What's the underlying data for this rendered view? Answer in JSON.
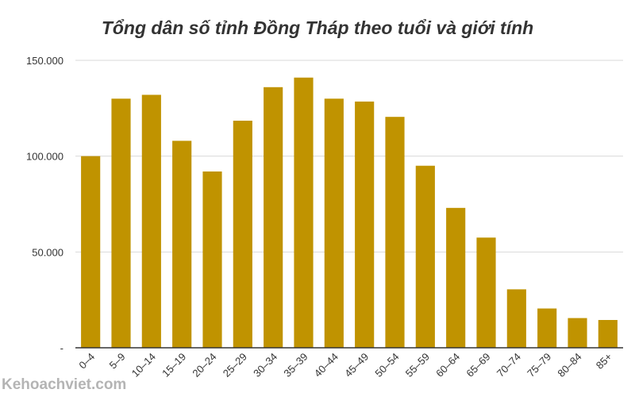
{
  "chart_data": {
    "type": "bar",
    "title": "Tổng dân số tỉnh Đồng Tháp theo tuổi và giới tính",
    "xlabel": "",
    "ylabel": "",
    "categories": [
      "0–4",
      "5–9",
      "10–14",
      "15–19",
      "20–24",
      "25–29",
      "30–34",
      "35–39",
      "40–44",
      "45–49",
      "50–54",
      "55–59",
      "60–64",
      "65–69",
      "70–74",
      "75–79",
      "80–84",
      "85+"
    ],
    "values": [
      100000,
      130000,
      132000,
      108000,
      92000,
      118500,
      136000,
      141000,
      130000,
      128500,
      120500,
      95000,
      73000,
      57500,
      30500,
      20500,
      15500,
      14500
    ],
    "yticks": [
      {
        "value": 0,
        "label": "-"
      },
      {
        "value": 50000,
        "label": "50.000"
      },
      {
        "value": 100000,
        "label": "100.000"
      },
      {
        "value": 150000,
        "label": "150.000"
      }
    ],
    "ylim": [
      0,
      150000
    ],
    "grid": true,
    "bar_color": "#c09300",
    "grid_color": "#d9d9d9",
    "axis_color": "#333333"
  },
  "watermark": "Kehoachviet.com"
}
